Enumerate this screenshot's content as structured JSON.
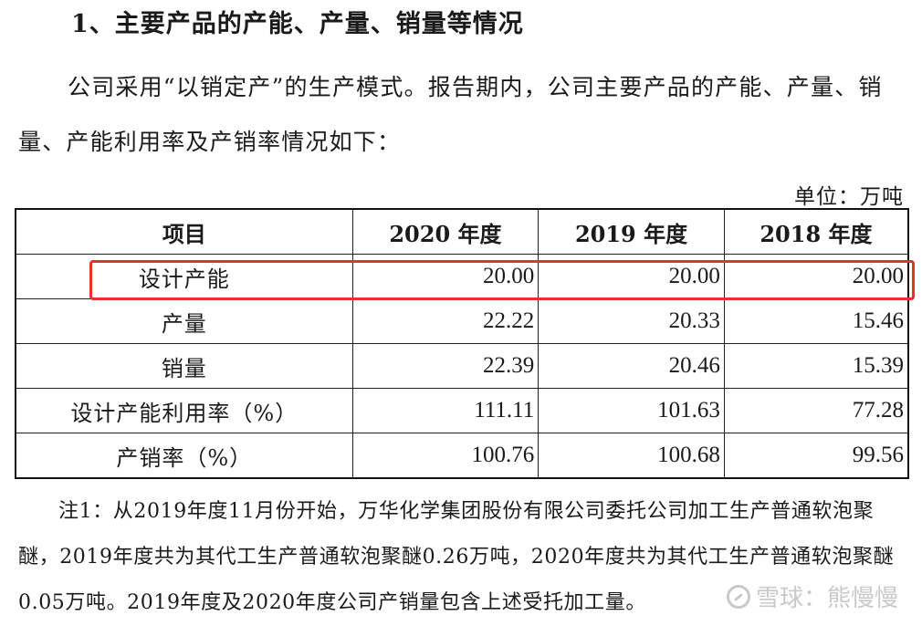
{
  "heading": "1、主要产品的产能、产量、销量等情况",
  "paragraph": "公司采用“以销定产”的生产模式。报告期内，公司主要产品的产能、产量、销量、产能利用率及产销率情况如下：",
  "unit": "单位：万吨",
  "table": {
    "headers": [
      "项目",
      "2020 年度",
      "2019 年度",
      "2018 年度"
    ],
    "rows": [
      {
        "label": "设计产能",
        "v2020": "20.00",
        "v2019": "20.00",
        "v2018": "20.00"
      },
      {
        "label": "产量",
        "v2020": "22.22",
        "v2019": "20.33",
        "v2018": "15.46"
      },
      {
        "label": "销量",
        "v2020": "22.39",
        "v2019": "20.46",
        "v2018": "15.39"
      },
      {
        "label": "设计产能利用率（%）",
        "v2020": "111.11",
        "v2019": "101.63",
        "v2018": "77.28"
      },
      {
        "label": "产销率（%）",
        "v2020": "100.76",
        "v2019": "100.68",
        "v2018": "99.56"
      }
    ]
  },
  "note": "注1：从2019年度11月份开始，万华化学集团股份有限公司委托公司加工生产普通软泡聚醚，2019年度共为其代工生产普通软泡聚醚0.26万吨，2020年度共为其代工生产普通软泡聚醚0.05万吨。2019年度及2020年度公司产销量包含上述受托加工量。",
  "watermark": "雪球：熊慢慢",
  "colors": {
    "highlight": "#e5322d",
    "watermark": "#c9c9c9"
  }
}
